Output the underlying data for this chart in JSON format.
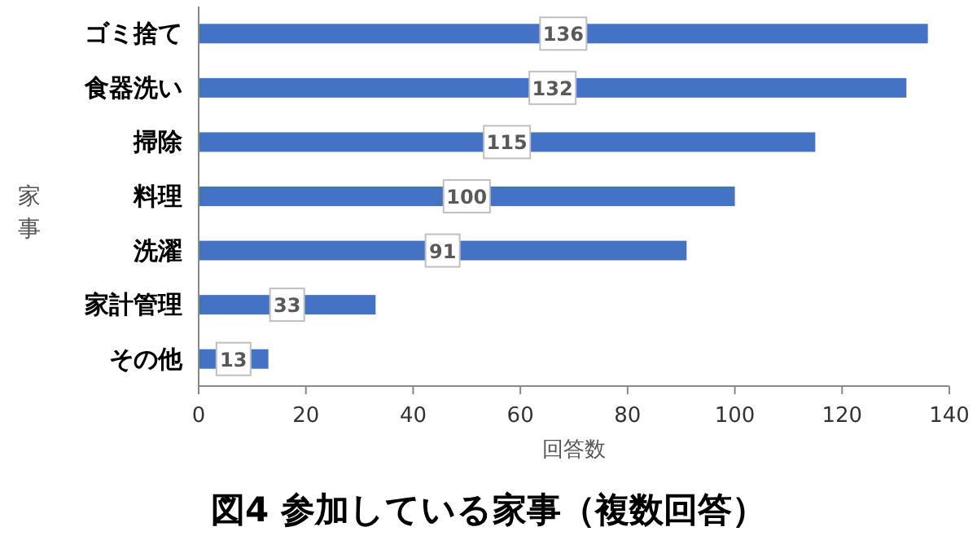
{
  "chart_data": {
    "type": "bar",
    "orientation": "horizontal",
    "title": "図4 参加している家事（複数回答）",
    "xlabel": "回答数",
    "ylabel": "家事",
    "categories": [
      "ゴミ捨て",
      "食器洗い",
      "掃除",
      "料理",
      "洗濯",
      "家計管理",
      "その他"
    ],
    "values": [
      136,
      132,
      115,
      100,
      91,
      33,
      13
    ],
    "color": "#4472c4",
    "xlim": [
      0,
      140
    ],
    "xticks": [
      0,
      20,
      40,
      60,
      80,
      100,
      120,
      140
    ],
    "grid": false,
    "data_labels": true
  }
}
